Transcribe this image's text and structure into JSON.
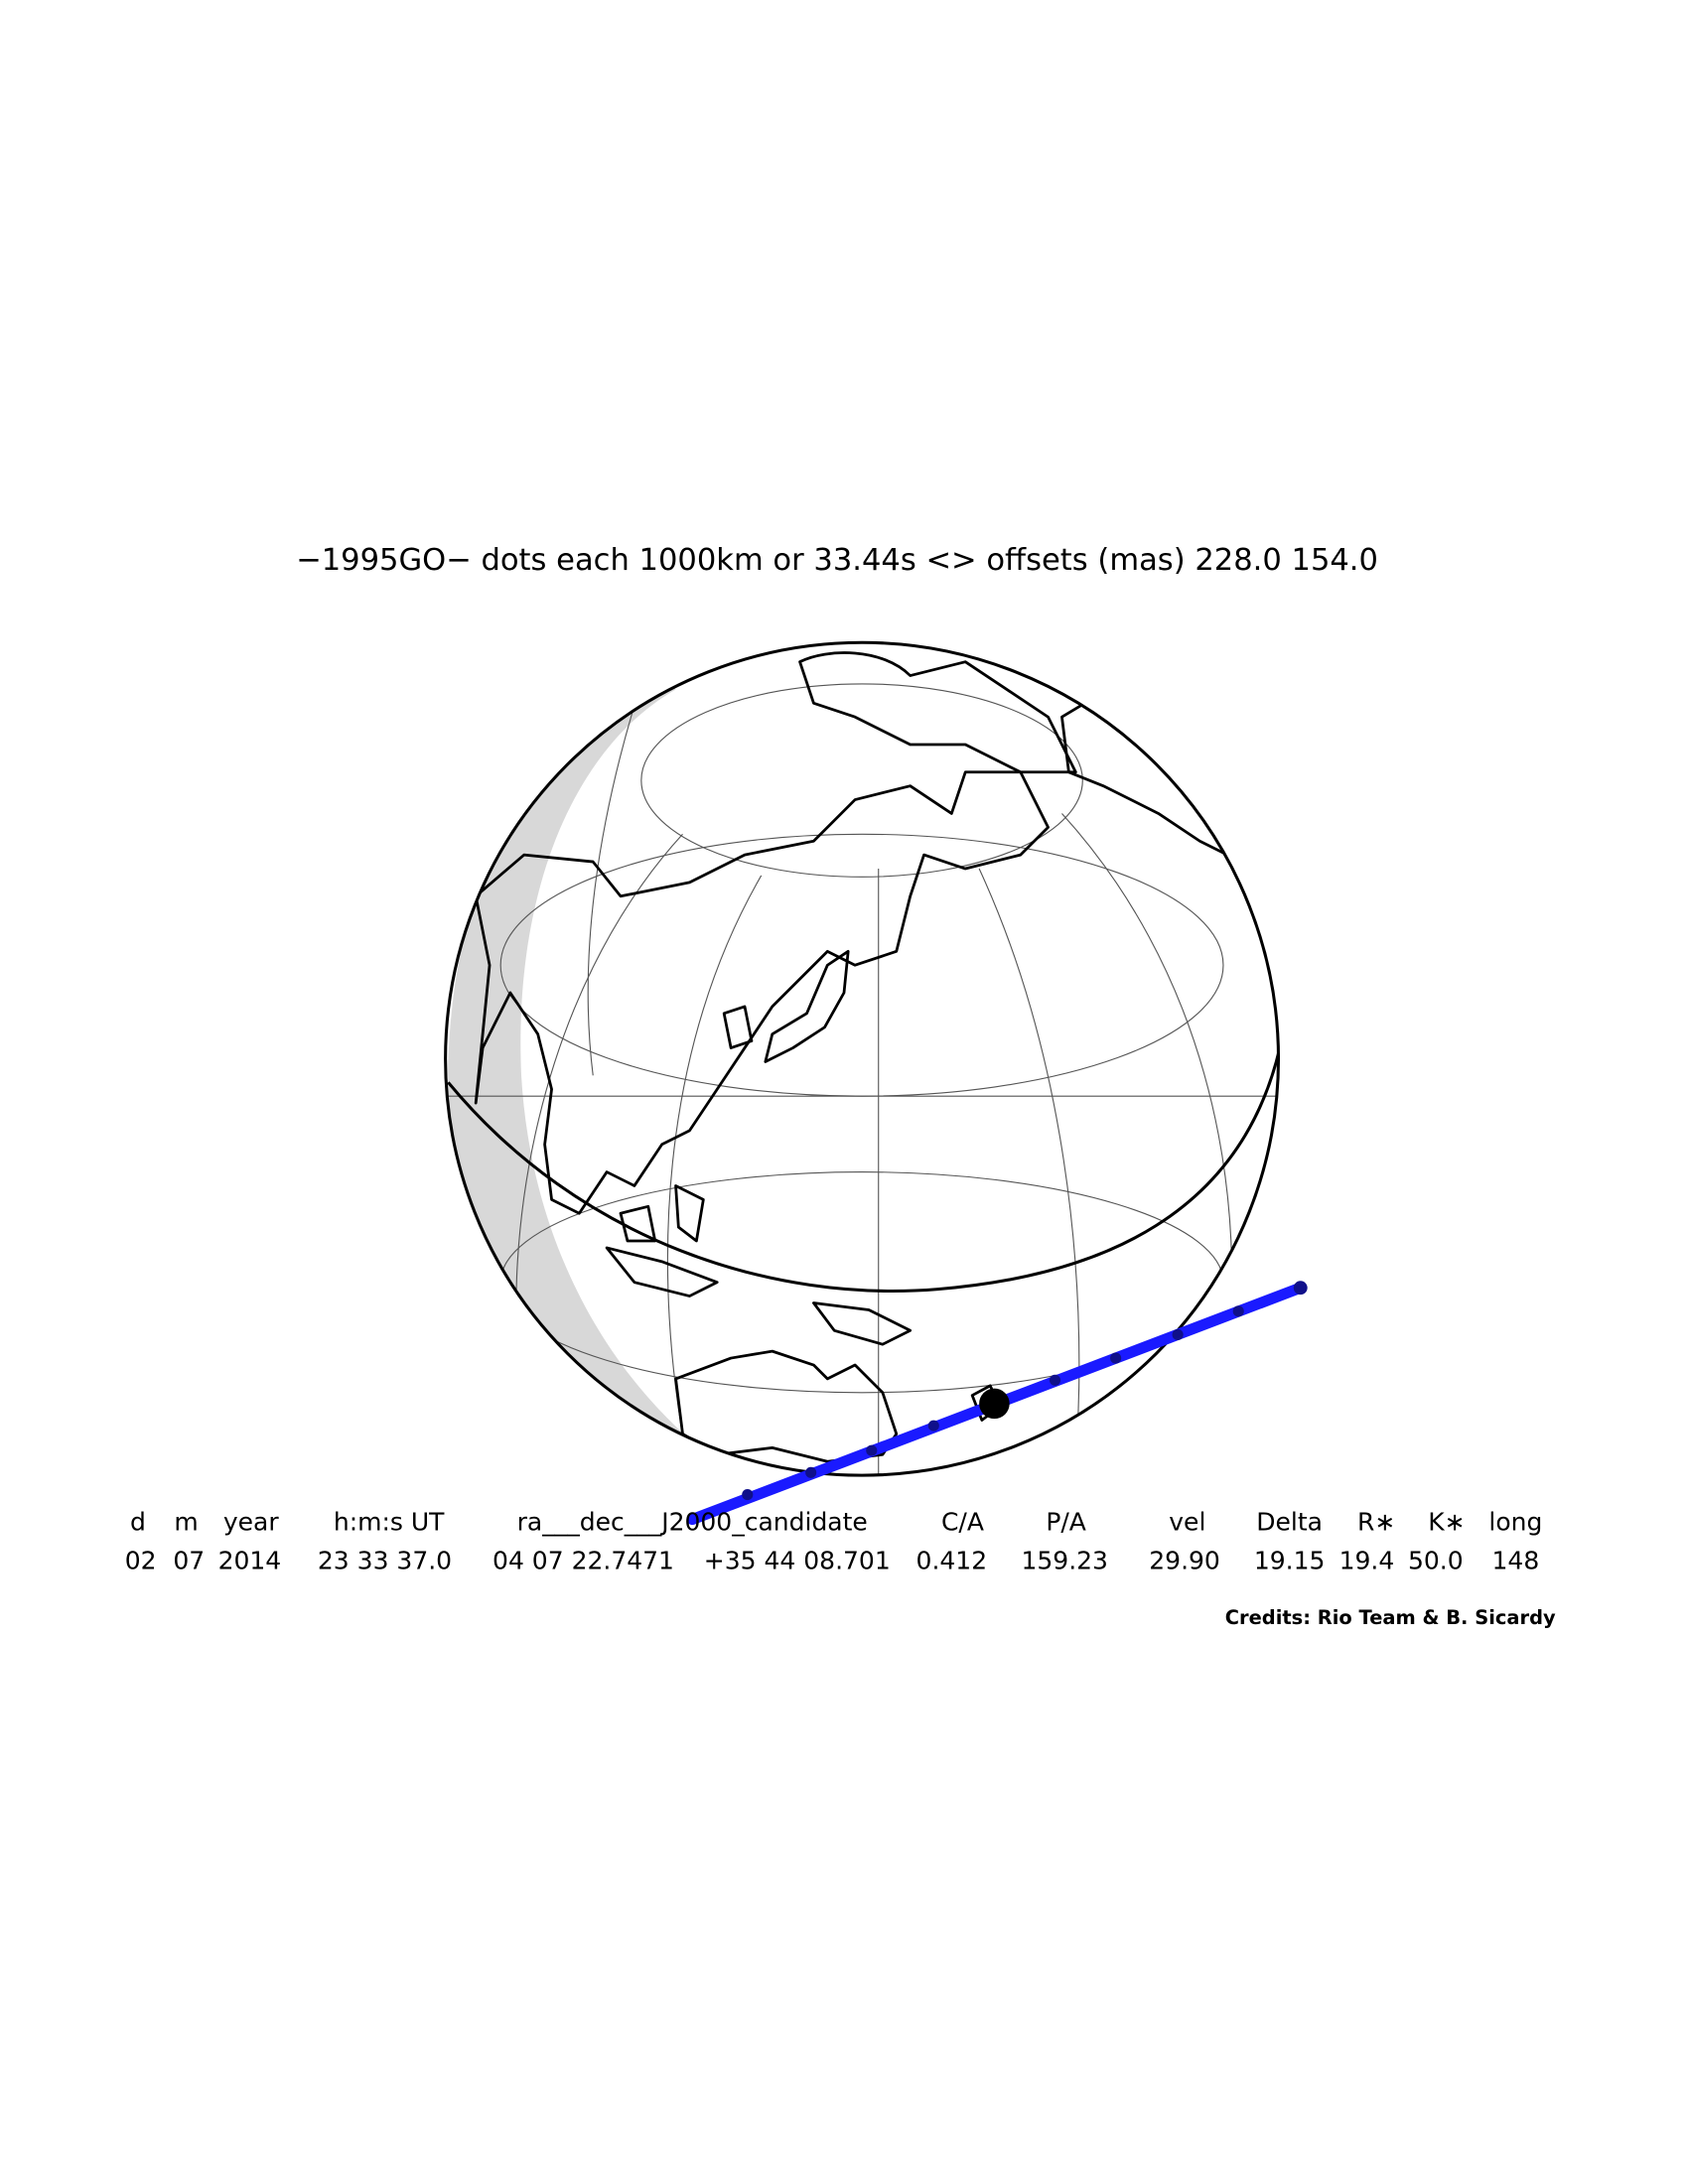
{
  "header": {
    "title": "−1995GO− dots each 1000km or 33.44s <> offsets (mas)  228.0   154.0"
  },
  "table": {
    "headers": [
      "d",
      "m",
      "year",
      "h:m:s UT",
      "ra___dec___J2000_candidate",
      "C/A",
      "P/A",
      "vel",
      "Delta",
      "R∗",
      "K∗",
      "long"
    ],
    "values": [
      "02",
      "07",
      "2014",
      "23 33 37.0",
      "04 07 22.7471",
      "+35 44 08.701",
      "0.412",
      "159.23",
      "29.90",
      "19.15",
      "19.4",
      "50.0",
      "148"
    ]
  },
  "credits": "Credits: Rio Team & B. Sicardy"
}
